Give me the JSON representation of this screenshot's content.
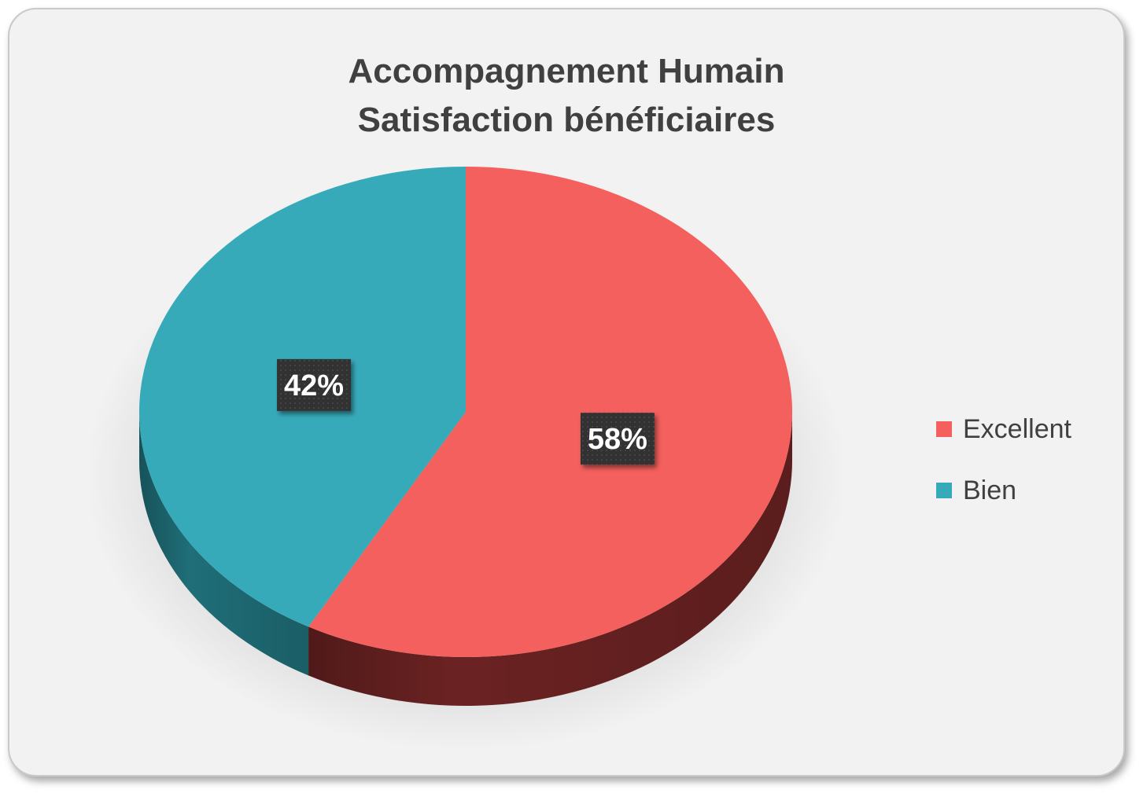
{
  "chart_data": {
    "type": "pie",
    "title_lines": [
      "Accompagnement Humain",
      "Satisfaction bénéficiaires"
    ],
    "slices": [
      {
        "name": "Excellent",
        "value": 58,
        "label": "58%",
        "color": "#f3605d",
        "side_color": "#6b2222"
      },
      {
        "name": "Bien",
        "value": 42,
        "label": "42%",
        "color": "#37aab9",
        "side_color": "#1f6e78"
      }
    ],
    "legend": {
      "position": "right",
      "items": [
        "Excellent",
        "Bien"
      ]
    },
    "style": "3d"
  }
}
